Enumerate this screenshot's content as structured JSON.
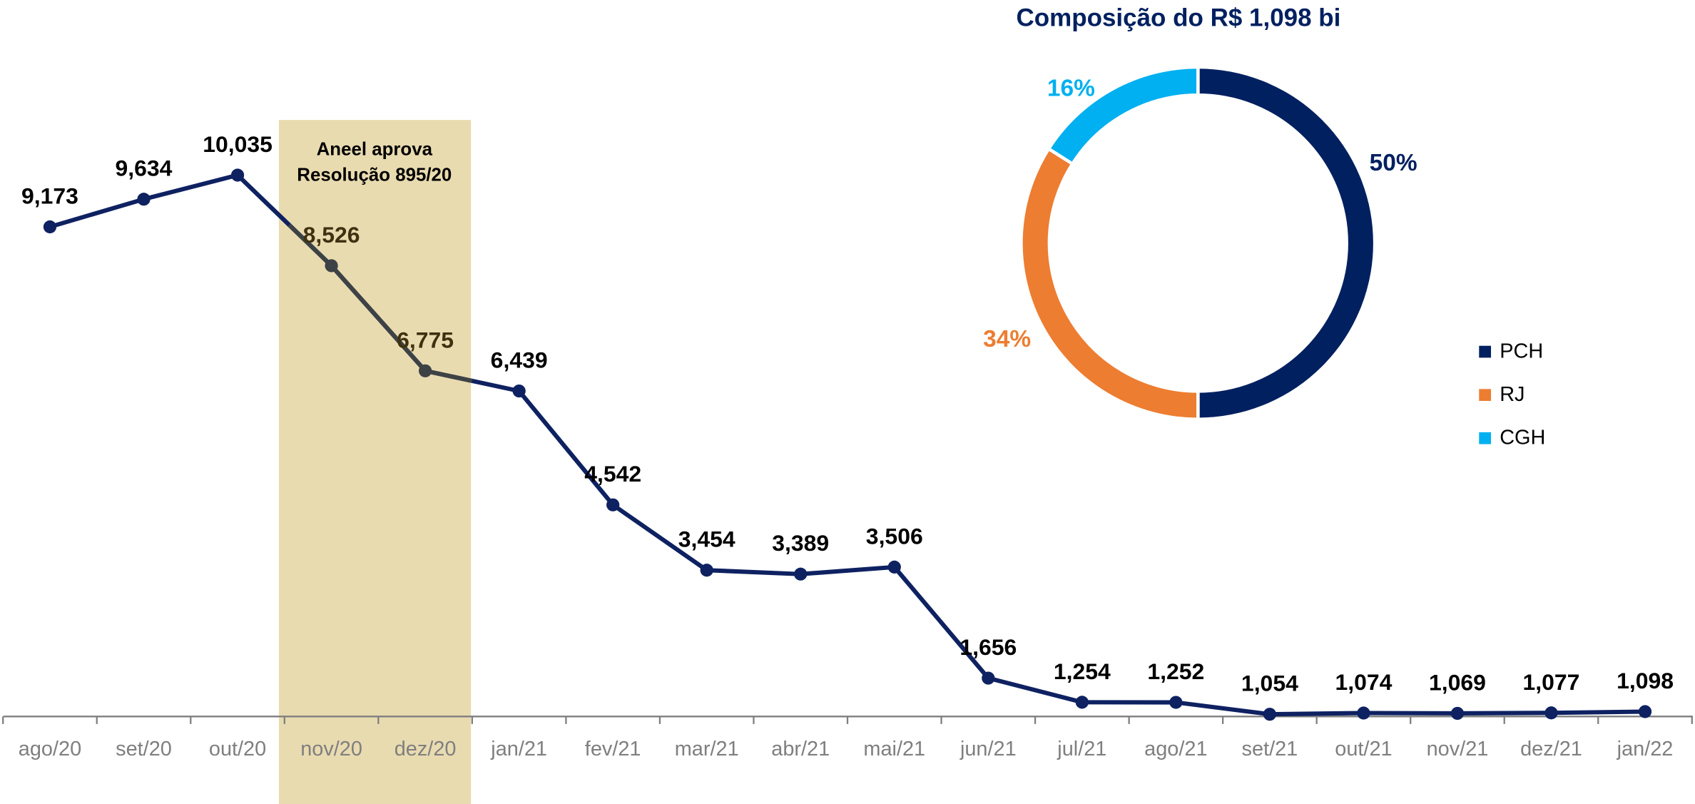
{
  "chart_data": [
    {
      "type": "line",
      "categories": [
        "ago/20",
        "set/20",
        "out/20",
        "nov/20",
        "dez/20",
        "jan/21",
        "fev/21",
        "mar/21",
        "abr/21",
        "mai/21",
        "jun/21",
        "jul/21",
        "ago/21",
        "set/21",
        "out/21",
        "nov/21",
        "dez/21",
        "jan/22"
      ],
      "values": [
        9.173,
        9.634,
        10.035,
        8.526,
        6.775,
        6.439,
        4.542,
        3.454,
        3.389,
        3.506,
        1.656,
        1.254,
        1.252,
        1.054,
        1.074,
        1.069,
        1.077,
        1.098
      ],
      "value_labels": [
        "9,173",
        "9,634",
        "10,035",
        "8,526",
        "6,775",
        "6,439",
        "4,542",
        "3,454",
        "3,389",
        "3,506",
        "1,656",
        "1,254",
        "1,252",
        "1,054",
        "1,074",
        "1,069",
        "1,077",
        "1,098"
      ],
      "color": "#0e2161",
      "annotation": [
        "Aneel aprova",
        "Resolução 895/20"
      ]
    },
    {
      "type": "pie",
      "title": "Composição do R$ 1,098 bi",
      "categories": [
        "PCH",
        "RJ",
        "CGH"
      ],
      "values": [
        50,
        34,
        16
      ],
      "value_labels": [
        "50%",
        "34%",
        "16%"
      ],
      "colors": [
        "#002060",
        "#ed7d31",
        "#00b0f0"
      ],
      "legend": "right"
    }
  ]
}
